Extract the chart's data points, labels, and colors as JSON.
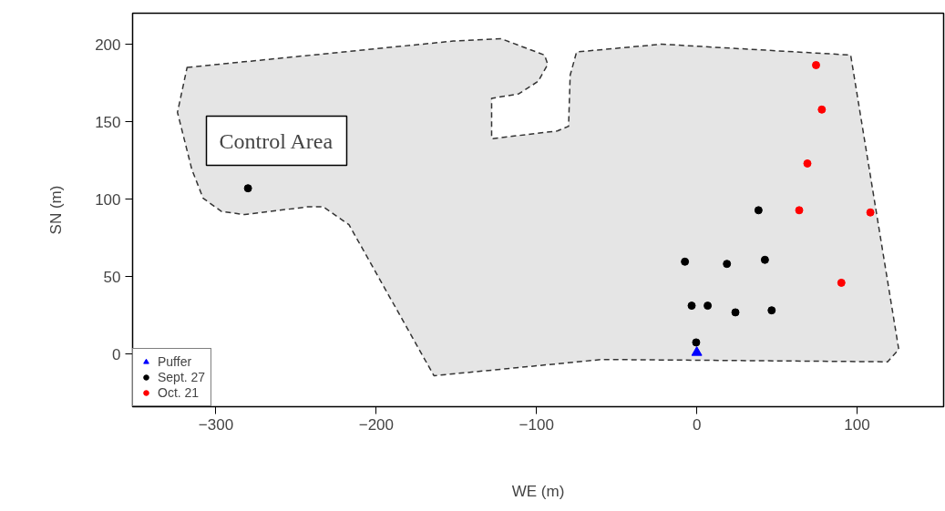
{
  "chart_data": {
    "type": "scatter",
    "xlabel": "WE (m)",
    "ylabel": "SN (m)",
    "xlim": [
      -352,
      154
    ],
    "ylim": [
      -34,
      220
    ],
    "xticks": [
      -300,
      -200,
      -100,
      0,
      100
    ],
    "yticks": [
      0,
      50,
      100,
      150,
      200
    ],
    "grid": false,
    "legend": "bottom left",
    "annotations": [
      "Control Area"
    ],
    "series": [
      {
        "type": "area",
        "color": "#e5e5e5",
        "line_style": "dashed",
        "x": [
          -318,
          -152,
          -122,
          -95,
          -93,
          -99,
          -111,
          -128,
          -128,
          -87,
          -80,
          -79,
          -75,
          -22,
          96,
          126,
          119,
          -59,
          -164,
          -217,
          -233,
          -243,
          -282,
          -296.5,
          -308,
          -315,
          -324
        ],
        "values": [
          185,
          202,
          203.5,
          193,
          187,
          176,
          168,
          165,
          139,
          144,
          147,
          180,
          195,
          200,
          193,
          3,
          -5,
          -3.5,
          -14,
          83.5,
          95,
          95,
          90,
          92,
          100.6,
          119,
          156
        ]
      },
      {
        "name": "Puffer",
        "marker": "triangle",
        "color": "#0000ff",
        "x": [
          0
        ],
        "values": [
          1
        ]
      },
      {
        "name": "Sept. 27",
        "marker": "circle",
        "color": "#000000",
        "x": [
          -280,
          38.5,
          -7.4,
          18.8,
          42.5,
          -3.2,
          6.8,
          24.1,
          46.7,
          -0.4
        ],
        "values": [
          107,
          92.8,
          59.6,
          58.2,
          60.8,
          31.2,
          31.2,
          26.9,
          28.2,
          7.5
        ]
      },
      {
        "name": "Oct. 21",
        "marker": "circle",
        "color": "#ff0000",
        "x": [
          74.4,
          78,
          69,
          63.9,
          108.3,
          90.2
        ],
        "values": [
          186.5,
          157.8,
          123,
          92.8,
          91.4,
          46
        ]
      }
    ]
  }
}
